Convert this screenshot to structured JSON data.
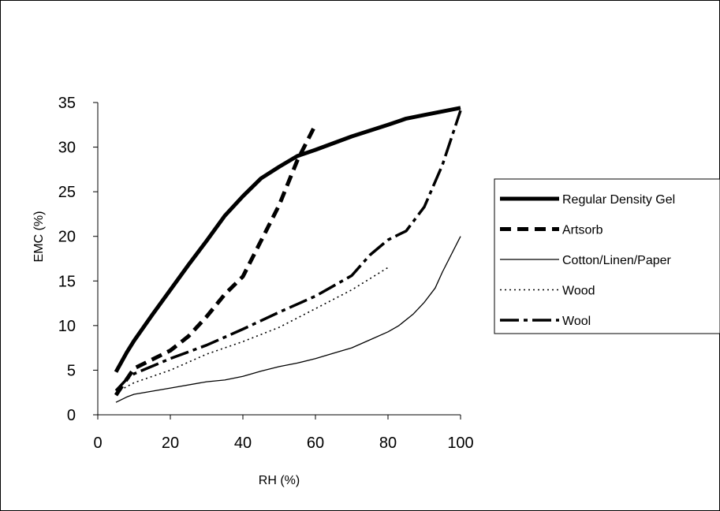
{
  "chart_data": {
    "type": "line",
    "title": "",
    "xlabel": "RH (%)",
    "ylabel": "EMC (%)",
    "xlim": [
      0,
      100
    ],
    "ylim": [
      0,
      35
    ],
    "xticks": [
      0,
      20,
      40,
      60,
      80,
      100
    ],
    "yticks": [
      0,
      5,
      10,
      15,
      20,
      25,
      30,
      35
    ],
    "grid": false,
    "legend_position": "right",
    "series": [
      {
        "name": "Regular Density Gel",
        "style": "thick-solid",
        "points": [
          [
            5,
            4.8
          ],
          [
            8,
            7
          ],
          [
            10,
            8.3
          ],
          [
            15,
            11.2
          ],
          [
            20,
            14
          ],
          [
            25,
            16.8
          ],
          [
            30,
            19.5
          ],
          [
            35,
            22.3
          ],
          [
            40,
            24.5
          ],
          [
            45,
            26.5
          ],
          [
            50,
            27.8
          ],
          [
            55,
            29
          ],
          [
            60,
            29.7
          ],
          [
            70,
            31.2
          ],
          [
            80,
            32.5
          ],
          [
            85,
            33.2
          ],
          [
            90,
            33.6
          ],
          [
            100,
            34.4
          ]
        ]
      },
      {
        "name": "Artsorb",
        "style": "thick-dashed",
        "points": [
          [
            5,
            2.2
          ],
          [
            10,
            5.2
          ],
          [
            15,
            6.2
          ],
          [
            20,
            7.2
          ],
          [
            25,
            8.8
          ],
          [
            30,
            11
          ],
          [
            35,
            13.5
          ],
          [
            40,
            15.5
          ],
          [
            45,
            19.5
          ],
          [
            50,
            23.5
          ],
          [
            55,
            28.5
          ],
          [
            60,
            32.5
          ]
        ]
      },
      {
        "name": "Cotton/Linen/Paper",
        "style": "thin-solid",
        "points": [
          [
            5,
            1.4
          ],
          [
            8,
            2
          ],
          [
            10,
            2.3
          ],
          [
            20,
            3
          ],
          [
            30,
            3.7
          ],
          [
            35,
            3.9
          ],
          [
            40,
            4.3
          ],
          [
            45,
            4.9
          ],
          [
            50,
            5.4
          ],
          [
            55,
            5.8
          ],
          [
            60,
            6.3
          ],
          [
            65,
            6.9
          ],
          [
            70,
            7.5
          ],
          [
            75,
            8.4
          ],
          [
            80,
            9.3
          ],
          [
            83,
            10
          ],
          [
            87,
            11.3
          ],
          [
            90,
            12.6
          ],
          [
            93,
            14.2
          ],
          [
            95,
            16
          ],
          [
            100,
            20
          ]
        ]
      },
      {
        "name": "Wood",
        "style": "dotted",
        "points": [
          [
            5,
            2.5
          ],
          [
            10,
            3.6
          ],
          [
            20,
            5
          ],
          [
            30,
            6.8
          ],
          [
            40,
            8.2
          ],
          [
            50,
            9.8
          ],
          [
            60,
            11.9
          ],
          [
            70,
            14
          ],
          [
            80,
            16.5
          ]
        ]
      },
      {
        "name": "Wool",
        "style": "long-dash-dot",
        "points": [
          [
            5,
            2.7
          ],
          [
            8,
            4
          ],
          [
            10,
            4.6
          ],
          [
            20,
            6.3
          ],
          [
            30,
            7.8
          ],
          [
            40,
            9.6
          ],
          [
            50,
            11.5
          ],
          [
            60,
            13.3
          ],
          [
            70,
            15.6
          ],
          [
            75,
            17.9
          ],
          [
            80,
            19.6
          ],
          [
            85,
            20.6
          ],
          [
            90,
            23.3
          ],
          [
            95,
            28
          ],
          [
            100,
            34.1
          ]
        ]
      }
    ]
  }
}
